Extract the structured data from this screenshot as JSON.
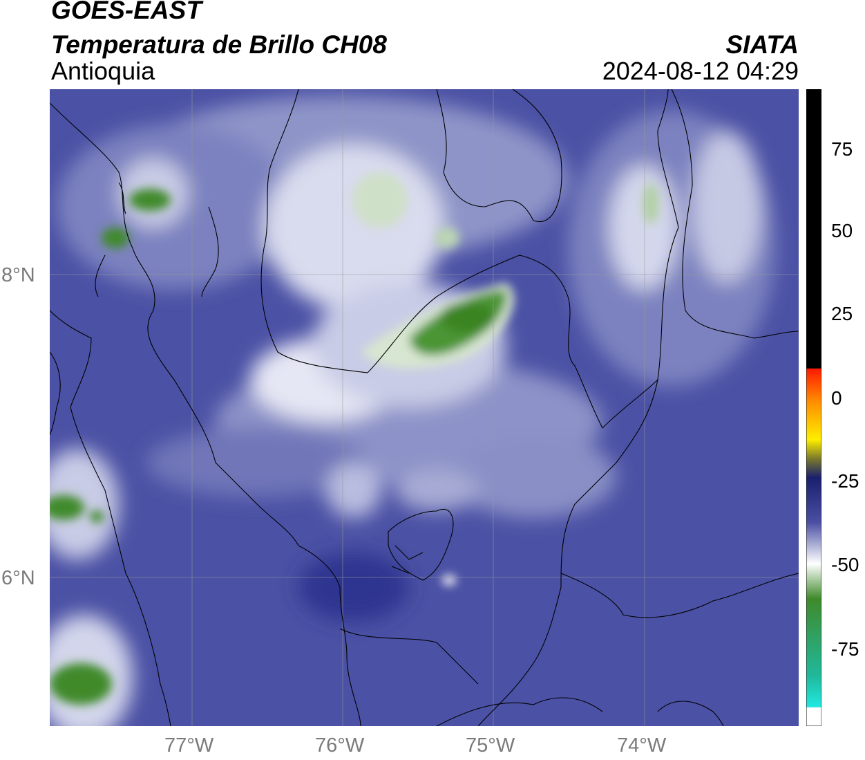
{
  "header": {
    "satellite": "GOES-EAST",
    "product": "Temperatura de Brillo CH08",
    "region": "Antioquia",
    "agency": "SIATA",
    "datetime": "2024-08-12 04:29"
  },
  "map": {
    "lat_labels": [
      "8°N",
      "6°N"
    ],
    "lon_labels": [
      "77°W",
      "76°W",
      "75°W",
      "74°W"
    ],
    "gridlines": true,
    "field": "brightness temperature (°C)",
    "background_color": "#4a4fa3"
  },
  "colorbar": {
    "ticks": [
      "75",
      "50",
      "25",
      "0",
      "-25",
      "-50",
      "-75"
    ],
    "range": [
      -95,
      90
    ],
    "colors": {
      "warm_black": "#000000",
      "red": "#ff1a00",
      "orange": "#ff8c00",
      "yellow": "#ffee00",
      "navy": "#1a1f6e",
      "blue": "#4a4fa3",
      "white": "#ffffff",
      "green": "#3f8a2a",
      "cyan": "#20e0d0"
    }
  }
}
